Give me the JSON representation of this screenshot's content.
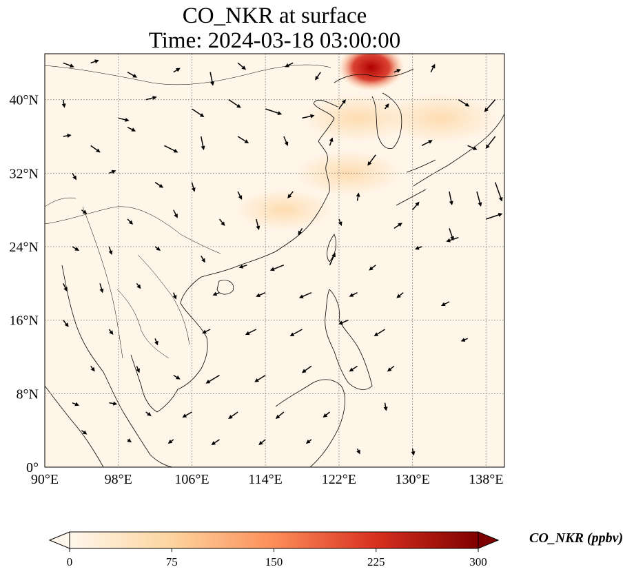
{
  "map": {
    "title_line1": "CO_NKR at surface",
    "title_line2": "Time: 2024-03-18 03:00:00",
    "projection": "PlateCarree",
    "extent": {
      "lon": [
        90,
        140
      ],
      "lat": [
        0,
        45
      ]
    },
    "gridlines": "dotted",
    "lon_ticks": [
      {
        "value": 90,
        "label": "90°E"
      },
      {
        "value": 98,
        "label": "98°E"
      },
      {
        "value": 106,
        "label": "106°E"
      },
      {
        "value": 114,
        "label": "114°E"
      },
      {
        "value": 122,
        "label": "122°E"
      },
      {
        "value": 130,
        "label": "130°E"
      },
      {
        "value": 138,
        "label": "138°E"
      }
    ],
    "lat_ticks": [
      {
        "value": 0,
        "label": "0°"
      },
      {
        "value": 8,
        "label": "8°N"
      },
      {
        "value": 16,
        "label": "16°N"
      },
      {
        "value": 24,
        "label": "24°N"
      },
      {
        "value": 32,
        "label": "32°N"
      },
      {
        "value": 40,
        "label": "40°N"
      }
    ],
    "colors": {
      "background": "#fff5e8",
      "coast": "#000000",
      "grid": "#808080",
      "arrow": "#000000"
    },
    "plume_regions": [
      {
        "name": "northeast-china-hotspot",
        "lon": 125.5,
        "lat": 43.5,
        "level": 300
      },
      {
        "name": "korea-yellow-sea-plume",
        "lon": 124,
        "lat": 38,
        "level": 40
      },
      {
        "name": "japan-sea-plume",
        "lon": 133,
        "lat": 38,
        "level": 45
      },
      {
        "name": "east-china-sea-plume",
        "lon": 123,
        "lat": 32,
        "level": 35
      },
      {
        "name": "south-china-plume",
        "lon": 116,
        "lat": 28,
        "level": 25
      }
    ],
    "wind_vectors": [
      [
        92,
        44,
        0.8,
        -0.3
      ],
      [
        95,
        44,
        0.6,
        0.2
      ],
      [
        99,
        43,
        0.7,
        -0.4
      ],
      [
        104,
        43,
        0.5,
        0.3
      ],
      [
        108,
        43,
        0.2,
        -1
      ],
      [
        111,
        44,
        0.6,
        -0.5
      ],
      [
        117,
        44,
        -0.6,
        -0.3
      ],
      [
        120,
        43,
        -0.4,
        -0.6
      ],
      [
        128,
        43,
        0.5,
        0.2
      ],
      [
        132,
        43,
        0.3,
        0.6
      ],
      [
        92,
        40,
        0.1,
        -0.6
      ],
      [
        98,
        38,
        0.8,
        -0.2
      ],
      [
        101,
        40,
        0.8,
        0.2
      ],
      [
        106,
        39,
        0.9,
        -0.6
      ],
      [
        110,
        40,
        0.9,
        -0.6
      ],
      [
        114,
        39,
        1.2,
        -0.4
      ],
      [
        118,
        38,
        0.9,
        0.2
      ],
      [
        122,
        39,
        0.5,
        0.7
      ],
      [
        127,
        39,
        0.3,
        0.4
      ],
      [
        135,
        40,
        0.8,
        -0.5
      ],
      [
        139,
        40,
        -0.8,
        -0.9
      ],
      [
        92,
        36,
        0.6,
        0.1
      ],
      [
        95,
        35,
        0.7,
        -0.5
      ],
      [
        99,
        37,
        0.6,
        -0.3
      ],
      [
        103,
        35,
        1.0,
        -0.5
      ],
      [
        107,
        36,
        0.2,
        -1.0
      ],
      [
        111,
        36,
        0.8,
        -0.5
      ],
      [
        116,
        36,
        0.3,
        -0.7
      ],
      [
        121,
        35,
        0.2,
        0.6
      ],
      [
        126,
        34,
        -0.6,
        -0.8
      ],
      [
        131,
        35,
        0.8,
        0.4
      ],
      [
        136,
        35,
        0.7,
        -0.3
      ],
      [
        139,
        36,
        -0.7,
        -0.9
      ],
      [
        93,
        32,
        0.3,
        -0.5
      ],
      [
        97,
        32,
        0.5,
        0.2
      ],
      [
        102,
        31,
        0.6,
        -0.4
      ],
      [
        106,
        31,
        0.2,
        -0.7
      ],
      [
        111,
        30,
        0.3,
        -0.6
      ],
      [
        117,
        30,
        -0.4,
        -0.5
      ],
      [
        124,
        29,
        0.1,
        0.6
      ],
      [
        130,
        28,
        0.5,
        0.6
      ],
      [
        134,
        30,
        0.2,
        -1.0
      ],
      [
        137,
        30,
        0.3,
        -1.1
      ],
      [
        139,
        31,
        0.5,
        -1.4
      ],
      [
        94,
        28,
        0.4,
        -0.3
      ],
      [
        99,
        27,
        0.4,
        -0.4
      ],
      [
        104,
        28,
        0.3,
        -0.6
      ],
      [
        109,
        27,
        0.4,
        -0.5
      ],
      [
        113,
        27,
        0.2,
        -0.8
      ],
      [
        118,
        26,
        -0.3,
        -0.5
      ],
      [
        122,
        27,
        0.2,
        -0.5
      ],
      [
        128,
        26,
        0.6,
        0.4
      ],
      [
        134,
        26,
        0.3,
        -0.9
      ],
      [
        138,
        27,
        1.2,
        0.4
      ],
      [
        93,
        24,
        0.5,
        -0.3
      ],
      [
        97,
        24,
        0.2,
        -0.6
      ],
      [
        102,
        24,
        0.4,
        -0.3
      ],
      [
        107,
        23,
        0.3,
        -0.5
      ],
      [
        112,
        22,
        -0.6,
        -0.2
      ],
      [
        116,
        22,
        -1.0,
        -0.4
      ],
      [
        121,
        22,
        0.4,
        0.9
      ],
      [
        126,
        22,
        -0.5,
        -0.4
      ],
      [
        131,
        24,
        -0.5,
        -0.2
      ],
      [
        135,
        25,
        -0.9,
        -0.3
      ],
      [
        92,
        20,
        0.3,
        -0.6
      ],
      [
        96,
        20,
        0.2,
        -0.7
      ],
      [
        100,
        20,
        0.3,
        -0.4
      ],
      [
        104,
        19,
        0.2,
        -0.5
      ],
      [
        109,
        19,
        -0.5,
        -0.2
      ],
      [
        114,
        19,
        -0.7,
        -0.3
      ],
      [
        119,
        19,
        -0.9,
        -0.4
      ],
      [
        124,
        19,
        -0.6,
        -0.3
      ],
      [
        129,
        19,
        -0.5,
        -0.4
      ],
      [
        134,
        18,
        -0.6,
        -0.3
      ],
      [
        92,
        16,
        0.4,
        -0.5
      ],
      [
        97,
        15,
        0.3,
        -0.4
      ],
      [
        102,
        14,
        0.2,
        -0.5
      ],
      [
        108,
        15,
        -0.6,
        -0.3
      ],
      [
        113,
        15,
        -0.8,
        -0.4
      ],
      [
        118,
        15,
        -0.9,
        -0.5
      ],
      [
        123,
        16,
        -0.7,
        -0.3
      ],
      [
        127,
        15,
        -0.8,
        -0.5
      ],
      [
        136,
        14,
        -0.5,
        -0.2
      ],
      [
        95,
        11,
        0.3,
        -0.4
      ],
      [
        100,
        11,
        0.2,
        -0.5
      ],
      [
        104,
        10,
        0.5,
        -0.3
      ],
      [
        109,
        10,
        -1.0,
        -0.6
      ],
      [
        114,
        10,
        -0.8,
        -0.5
      ],
      [
        119,
        11,
        -0.7,
        -0.5
      ],
      [
        124,
        11,
        -0.6,
        -0.4
      ],
      [
        128,
        11,
        -0.5,
        -0.4
      ],
      [
        93,
        7,
        0.5,
        -0.2
      ],
      [
        97,
        7,
        0.6,
        -0.1
      ],
      [
        101,
        6,
        0.4,
        -0.3
      ],
      [
        106,
        6,
        -0.7,
        -0.4
      ],
      [
        111,
        6,
        -0.7,
        -0.5
      ],
      [
        116,
        6,
        -0.6,
        -0.5
      ],
      [
        121,
        6,
        -0.5,
        -0.4
      ],
      [
        127,
        7,
        0.1,
        -0.6
      ],
      [
        94,
        4,
        0.4,
        -0.3
      ],
      [
        99,
        3,
        0.3,
        -0.2
      ],
      [
        104,
        3,
        -0.4,
        -0.3
      ],
      [
        109,
        3,
        -0.6,
        -0.4
      ],
      [
        114,
        3,
        -0.5,
        -0.4
      ],
      [
        119,
        3,
        -0.4,
        -0.3
      ],
      [
        124,
        2,
        0.2,
        -0.4
      ],
      [
        130,
        2,
        0.1,
        -0.5
      ]
    ]
  },
  "colorbar": {
    "label": "CO_NKR (ppbv)",
    "min": 0,
    "max": 300,
    "extend": "both",
    "colormap": "OrRd",
    "ticks": [
      "0",
      "75",
      "150",
      "225",
      "300"
    ],
    "tick_values": [
      0,
      75,
      150,
      225,
      300
    ],
    "colors": [
      "#fff7ec",
      "#fdd49e",
      "#fc8d59",
      "#d7301f",
      "#7f0000"
    ]
  }
}
